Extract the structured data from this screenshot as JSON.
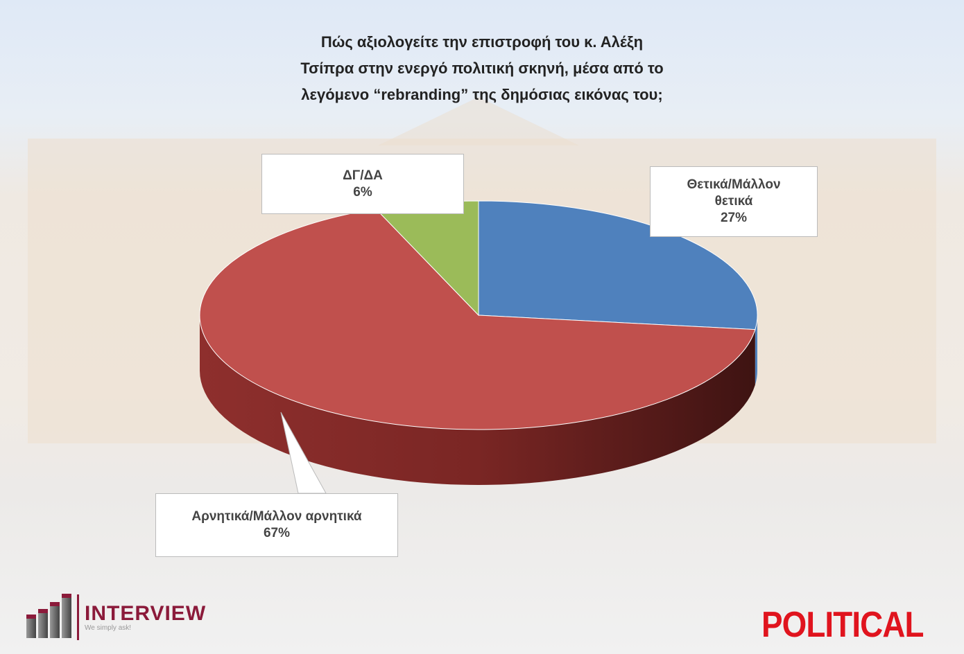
{
  "chart_data": {
    "type": "pie",
    "title": "Πώς αξιολογείτε την επιστροφή του κ. Αλέξη Τσίπρα στην ενεργό πολιτική σκηνή, μέσα από το λεγόμενο “rebranding” της δημόσιας εικόνας του;",
    "title_lines": [
      "Πώς αξιολογείτε την επιστροφή του κ. Αλέξη",
      "Τσίπρα στην ενεργό πολιτική σκηνή, μέσα από το",
      "λεγόμενο “rebranding” της δημόσιας εικόνας του;"
    ],
    "style": "3d",
    "slices": [
      {
        "label": "Θετικά/Μάλλον θετικά",
        "label_lines": [
          "Θετικά/Μάλλον",
          "θετικά"
        ],
        "value": 27,
        "display": "27%",
        "color": "#4f81bd"
      },
      {
        "label": "Αρνητικά/Μάλλον αρνητικά",
        "label_lines": [
          "Αρνητικά/Μάλλον αρνητικά"
        ],
        "value": 67,
        "display": "67%",
        "color": "#c0504d"
      },
      {
        "label": "ΔΓ/ΔΑ",
        "label_lines": [
          "ΔΓ/ΔΑ"
        ],
        "value": 6,
        "display": "6%",
        "color": "#9bbb59"
      }
    ]
  },
  "branding": {
    "left_logo": "INTERVIEW",
    "left_tagline": "We simply ask!",
    "right_logo": "POLITICAL"
  }
}
